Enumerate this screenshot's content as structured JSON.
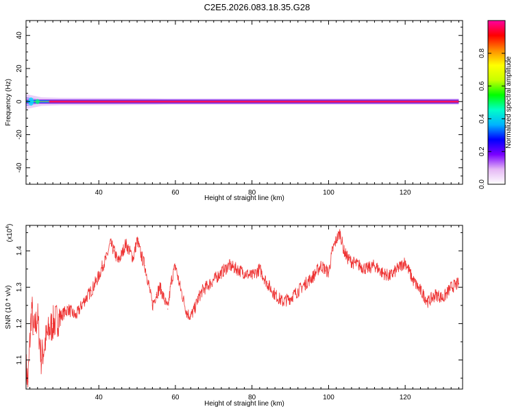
{
  "title": "C2E5.2026.083.18.35.G28",
  "chart_data": [
    {
      "type": "heatmap",
      "xlabel": "Height of straight line (km)",
      "ylabel": "Frequency (Hz)",
      "xlim": [
        21,
        135
      ],
      "ylim": [
        -50,
        49
      ],
      "xticks": [
        40,
        60,
        80,
        100,
        120
      ],
      "yticks": [
        -40,
        -20,
        0,
        20,
        40
      ],
      "ridge": {
        "x_start": 21,
        "x_end": 134,
        "center_freq_hz": 0,
        "core_halfwidth_hz": 0.6,
        "spread_halfwidth_hz": [
          {
            "x": 21,
            "hz": 4.5
          },
          {
            "x": 25,
            "hz": 2.6
          },
          {
            "x": 30,
            "hz": 2.3
          },
          {
            "x": 45,
            "hz": 2.2
          },
          {
            "x": 55,
            "hz": 2.0
          },
          {
            "x": 60,
            "hz": 1.3
          },
          {
            "x": 134,
            "hz": 1.0
          }
        ]
      },
      "colorbar": {
        "label": "Normalized spectral amplitude",
        "range": [
          0,
          1
        ],
        "ticks": [
          "0.0",
          "0.2",
          "0.4",
          "0.6",
          "0.8"
        ],
        "colors": [
          "#ffffff",
          "#e5b8f5",
          "#7a00ff",
          "#0000ff",
          "#00b4ff",
          "#00ffc8",
          "#00ff00",
          "#c8ff00",
          "#ffff00",
          "#ff8c00",
          "#ff0000",
          "#ff00a0"
        ]
      },
      "grid": false
    },
    {
      "type": "line",
      "xlabel": "Height of straight line (km)",
      "ylabel": "SNR (10 * v/v)",
      "scale_label": "(x10",
      "scale_exponent": "4",
      "xlim": [
        21,
        135
      ],
      "ylim": [
        1.02,
        1.47
      ],
      "xticks": [
        40,
        60,
        80,
        100,
        120
      ],
      "yticks": [
        "1.1",
        "1.2",
        "1.3",
        "1.4"
      ],
      "ytick_values": [
        1.1,
        1.2,
        1.3,
        1.4
      ],
      "series": [
        {
          "color": "#ee3333",
          "x": [
            21,
            21.5,
            22,
            22.5,
            23,
            24,
            25,
            26,
            27,
            28,
            30,
            32,
            34,
            36,
            38,
            40,
            41,
            42,
            43,
            44,
            45,
            46,
            47,
            48,
            49,
            50,
            51,
            52,
            53,
            54,
            55,
            56,
            57,
            58,
            59,
            60,
            61,
            62,
            63,
            64,
            65,
            66,
            67,
            68,
            70,
            72,
            74,
            76,
            78,
            80,
            82,
            84,
            86,
            88,
            90,
            92,
            94,
            96,
            98,
            100,
            101,
            102,
            103,
            104,
            105,
            106,
            108,
            110,
            112,
            114,
            116,
            118,
            120,
            122,
            124,
            126,
            128,
            130,
            132,
            134
          ],
          "y": [
            1.08,
            1.04,
            1.15,
            1.25,
            1.17,
            1.22,
            1.1,
            1.15,
            1.18,
            1.2,
            1.22,
            1.24,
            1.22,
            1.26,
            1.29,
            1.33,
            1.36,
            1.38,
            1.42,
            1.4,
            1.37,
            1.39,
            1.42,
            1.4,
            1.38,
            1.43,
            1.39,
            1.36,
            1.31,
            1.25,
            1.28,
            1.3,
            1.27,
            1.24,
            1.32,
            1.36,
            1.31,
            1.27,
            1.23,
            1.22,
            1.24,
            1.27,
            1.29,
            1.3,
            1.32,
            1.34,
            1.36,
            1.35,
            1.34,
            1.33,
            1.35,
            1.31,
            1.28,
            1.26,
            1.27,
            1.29,
            1.31,
            1.33,
            1.36,
            1.34,
            1.4,
            1.43,
            1.45,
            1.4,
            1.38,
            1.37,
            1.36,
            1.35,
            1.36,
            1.34,
            1.33,
            1.35,
            1.37,
            1.32,
            1.29,
            1.26,
            1.28,
            1.27,
            1.3,
            1.31
          ]
        }
      ],
      "grid": false
    }
  ]
}
